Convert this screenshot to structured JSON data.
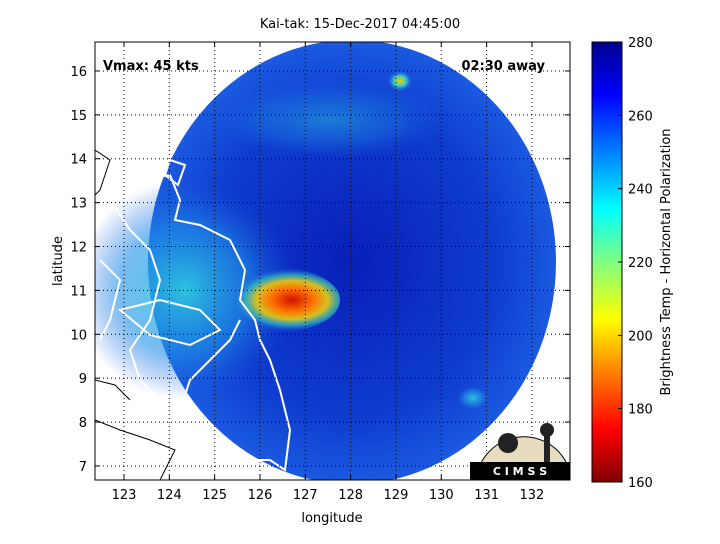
{
  "title": "Kai-tak: 15-Dec-2017 04:45:00",
  "annotations": {
    "vmax": "Vmax: 45 kts",
    "away": "02:30 away"
  },
  "map": {
    "xlabel": "longitude",
    "ylabel": "latitude",
    "xlim": [
      122.36,
      132.84
    ],
    "ylim": [
      6.68,
      16.66
    ],
    "xticks": [
      123,
      124,
      125,
      126,
      127,
      128,
      129,
      130,
      131,
      132
    ],
    "yticks": [
      7,
      8,
      9,
      10,
      11,
      12,
      13,
      14,
      15,
      16
    ],
    "grid": true
  },
  "colorbar": {
    "label": "Brightness Temp - Horizontal Polarization",
    "lim": [
      160,
      280
    ],
    "ticks": [
      160,
      180,
      200,
      220,
      240,
      260,
      280
    ]
  },
  "logo": {
    "text": "C I M S S"
  }
}
